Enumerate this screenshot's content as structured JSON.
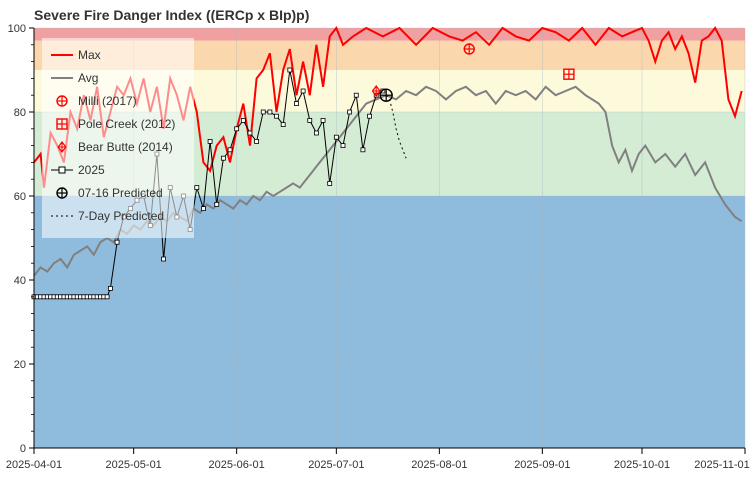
{
  "chart_data": {
    "type": "line",
    "title": "Severe Fire Danger Index ((ERCp x BIp)p)",
    "xlabel": "",
    "ylabel": "",
    "ylim": [
      0,
      100
    ],
    "xlim": [
      "2025-04-01",
      "2025-11-01"
    ],
    "y_ticks": [
      0,
      20,
      40,
      60,
      80,
      100
    ],
    "x_ticks": [
      "2025-04-01",
      "2025-05-01",
      "2025-06-01",
      "2025-07-01",
      "2025-08-01",
      "2025-09-01",
      "2025-10-01",
      "2025-11-01"
    ],
    "bands": [
      {
        "from": 0,
        "to": 60,
        "color": "#8fbcdc"
      },
      {
        "from": 60,
        "to": 80,
        "color": "#d5ecd4"
      },
      {
        "from": 80,
        "to": 90,
        "color": "#fdfadc"
      },
      {
        "from": 90,
        "to": 97,
        "color": "#fbd7ae"
      },
      {
        "from": 97,
        "to": 100,
        "color": "#f0a0a0"
      }
    ],
    "grid": true,
    "legend_position": "top-left",
    "legend": [
      "Max",
      "Avg",
      "Milli (2017)",
      "Pole Creek (2012)",
      "Bear Butte (2014)",
      "2025",
      "07-16 Predicted",
      "7-Day Predicted"
    ],
    "series": [
      {
        "name": "Max",
        "color": "#ff0000",
        "x": [
          "2025-04-01",
          "2025-04-03",
          "2025-04-04",
          "2025-04-06",
          "2025-04-08",
          "2025-04-10",
          "2025-04-12",
          "2025-04-14",
          "2025-04-16",
          "2025-04-18",
          "2025-04-20",
          "2025-04-22",
          "2025-04-24",
          "2025-04-26",
          "2025-04-28",
          "2025-04-30",
          "2025-05-02",
          "2025-05-04",
          "2025-05-06",
          "2025-05-08",
          "2025-05-10",
          "2025-05-12",
          "2025-05-14",
          "2025-05-16",
          "2025-05-18",
          "2025-05-20",
          "2025-05-22",
          "2025-05-24",
          "2025-05-26",
          "2025-05-28",
          "2025-05-30",
          "2025-06-01",
          "2025-06-03",
          "2025-06-05",
          "2025-06-07",
          "2025-06-09",
          "2025-06-11",
          "2025-06-13",
          "2025-06-15",
          "2025-06-17",
          "2025-06-19",
          "2025-06-21",
          "2025-06-23",
          "2025-06-25",
          "2025-06-27",
          "2025-06-29",
          "2025-07-01",
          "2025-07-03",
          "2025-07-06",
          "2025-07-10",
          "2025-07-15",
          "2025-07-20",
          "2025-07-25",
          "2025-07-30",
          "2025-08-04",
          "2025-08-08",
          "2025-08-12",
          "2025-08-16",
          "2025-08-20",
          "2025-08-24",
          "2025-08-28",
          "2025-09-01",
          "2025-09-05",
          "2025-09-09",
          "2025-09-13",
          "2025-09-17",
          "2025-09-21",
          "2025-09-25",
          "2025-09-28",
          "2025-10-01",
          "2025-10-03",
          "2025-10-05",
          "2025-10-07",
          "2025-10-09",
          "2025-10-11",
          "2025-10-13",
          "2025-10-15",
          "2025-10-17",
          "2025-10-19",
          "2025-10-21",
          "2025-10-23",
          "2025-10-25",
          "2025-10-27",
          "2025-10-29",
          "2025-10-31"
        ],
        "values": [
          68,
          70,
          62,
          75,
          72,
          68,
          80,
          76,
          84,
          78,
          86,
          74,
          80,
          86,
          84,
          88,
          82,
          88,
          80,
          86,
          76,
          88,
          84,
          78,
          86,
          80,
          68,
          66,
          72,
          74,
          68,
          76,
          82,
          72,
          88,
          90,
          94,
          80,
          90,
          95,
          84,
          92,
          84,
          96,
          86,
          98,
          100,
          96,
          98,
          100,
          98,
          100,
          96,
          100,
          98,
          97,
          99,
          96,
          100,
          98,
          97,
          100,
          99,
          97,
          100,
          96,
          100,
          98,
          99,
          100,
          97,
          92,
          97,
          99,
          95,
          98,
          94,
          87,
          97,
          98,
          100,
          97,
          83,
          79,
          85
        ]
      },
      {
        "name": "Avg",
        "color": "#808080",
        "x": [
          "2025-04-01",
          "2025-04-03",
          "2025-04-05",
          "2025-04-07",
          "2025-04-09",
          "2025-04-11",
          "2025-04-13",
          "2025-04-15",
          "2025-04-17",
          "2025-04-19",
          "2025-04-21",
          "2025-04-23",
          "2025-04-25",
          "2025-04-27",
          "2025-04-29",
          "2025-05-01",
          "2025-05-03",
          "2025-05-05",
          "2025-05-07",
          "2025-05-09",
          "2025-05-11",
          "2025-05-13",
          "2025-05-15",
          "2025-05-17",
          "2025-05-19",
          "2025-05-21",
          "2025-05-23",
          "2025-05-25",
          "2025-05-27",
          "2025-05-29",
          "2025-05-31",
          "2025-06-02",
          "2025-06-04",
          "2025-06-06",
          "2025-06-08",
          "2025-06-10",
          "2025-06-12",
          "2025-06-14",
          "2025-06-16",
          "2025-06-18",
          "2025-06-20",
          "2025-06-22",
          "2025-06-24",
          "2025-06-26",
          "2025-06-28",
          "2025-06-30",
          "2025-07-02",
          "2025-07-04",
          "2025-07-06",
          "2025-07-08",
          "2025-07-10",
          "2025-07-13",
          "2025-07-16",
          "2025-07-19",
          "2025-07-22",
          "2025-07-25",
          "2025-07-28",
          "2025-07-31",
          "2025-08-03",
          "2025-08-06",
          "2025-08-09",
          "2025-08-12",
          "2025-08-15",
          "2025-08-18",
          "2025-08-21",
          "2025-08-24",
          "2025-08-27",
          "2025-08-30",
          "2025-09-02",
          "2025-09-05",
          "2025-09-08",
          "2025-09-11",
          "2025-09-14",
          "2025-09-16",
          "2025-09-18",
          "2025-09-20",
          "2025-09-22",
          "2025-09-24",
          "2025-09-26",
          "2025-09-28",
          "2025-09-30",
          "2025-10-02",
          "2025-10-05",
          "2025-10-08",
          "2025-10-11",
          "2025-10-14",
          "2025-10-17",
          "2025-10-20",
          "2025-10-23",
          "2025-10-26",
          "2025-10-29",
          "2025-10-31"
        ],
        "values": [
          41,
          43,
          42,
          44,
          45,
          43,
          46,
          47,
          48,
          46,
          49,
          50,
          49,
          52,
          51,
          53,
          52,
          54,
          53,
          55,
          54,
          56,
          55,
          54,
          57,
          56,
          58,
          57,
          59,
          58,
          57,
          59,
          58,
          60,
          59,
          61,
          60,
          61,
          62,
          63,
          62,
          64,
          66,
          68,
          70,
          72,
          74,
          76,
          78,
          80,
          82,
          83,
          84,
          83,
          85,
          84,
          86,
          85,
          83,
          85,
          86,
          84,
          85,
          82,
          85,
          84,
          85,
          83,
          86,
          84,
          85,
          86,
          84,
          83,
          82,
          80,
          72,
          68,
          71,
          66,
          70,
          72,
          68,
          70,
          67,
          70,
          65,
          68,
          62,
          58,
          55,
          54
        ]
      },
      {
        "name": "2025",
        "color": "#000000",
        "x": [
          "2025-04-01",
          "2025-04-23",
          "2025-04-24",
          "2025-04-26",
          "2025-04-28",
          "2025-04-30",
          "2025-05-02",
          "2025-05-04",
          "2025-05-06",
          "2025-05-08",
          "2025-05-10",
          "2025-05-12",
          "2025-05-14",
          "2025-05-16",
          "2025-05-18",
          "2025-05-20",
          "2025-05-22",
          "2025-05-24",
          "2025-05-26",
          "2025-05-28",
          "2025-05-30",
          "2025-06-01",
          "2025-06-03",
          "2025-06-05",
          "2025-06-07",
          "2025-06-09",
          "2025-06-11",
          "2025-06-13",
          "2025-06-15",
          "2025-06-17",
          "2025-06-19",
          "2025-06-21",
          "2025-06-23",
          "2025-06-25",
          "2025-06-27",
          "2025-06-29",
          "2025-07-01",
          "2025-07-03",
          "2025-07-05",
          "2025-07-07",
          "2025-07-09",
          "2025-07-11",
          "2025-07-13",
          "2025-07-15"
        ],
        "values": [
          36,
          36,
          38,
          49,
          55,
          57,
          59,
          60,
          53,
          70,
          45,
          62,
          55,
          60,
          52,
          62,
          57,
          73,
          58,
          69,
          71,
          76,
          78,
          75,
          73,
          80,
          80,
          79,
          77,
          90,
          82,
          85,
          78,
          75,
          78,
          63,
          74,
          72,
          80,
          84,
          71,
          79,
          84,
          85
        ]
      }
    ],
    "predicted": {
      "name": "7-Day Predicted",
      "color": "#000000",
      "dash": "2,3",
      "x": [
        "2025-07-16",
        "2025-07-17",
        "2025-07-18",
        "2025-07-19",
        "2025-07-20",
        "2025-07-21",
        "2025-07-22"
      ],
      "values": [
        84,
        83,
        80,
        76,
        73,
        71,
        69
      ]
    },
    "markers": [
      {
        "name": "Milli (2017)",
        "x": "2025-08-10",
        "y": 95,
        "color": "#ff0000",
        "symbol": "circle-plus"
      },
      {
        "name": "Pole Creek (2012)",
        "x": "2025-09-09",
        "y": 89,
        "color": "#ff0000",
        "symbol": "square-plus"
      },
      {
        "name": "Bear Butte (2014)",
        "x": "2025-07-13",
        "y": 85,
        "color": "#ff0000",
        "symbol": "diamond-plus"
      },
      {
        "name": "07-16 Predicted",
        "x": "2025-07-16",
        "y": 84,
        "color": "#000000",
        "symbol": "circle-plus"
      }
    ]
  }
}
